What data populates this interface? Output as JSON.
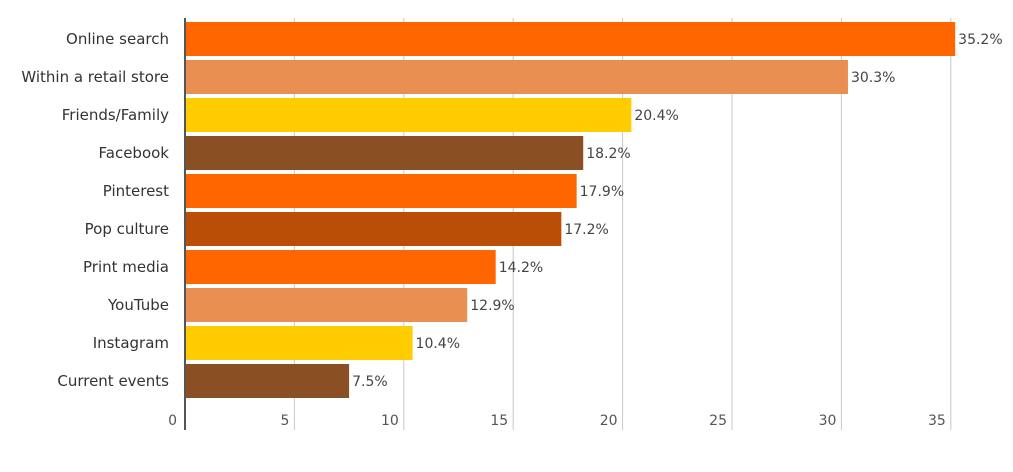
{
  "chart_data": {
    "type": "bar",
    "orientation": "horizontal",
    "categories": [
      "Online search",
      "Within a retail store",
      "Friends/Family",
      "Facebook",
      "Pinterest",
      "Pop culture",
      "Print media",
      "YouTube",
      "Instagram",
      "Current events"
    ],
    "values": [
      35.2,
      30.3,
      20.4,
      18.2,
      17.9,
      17.2,
      14.2,
      12.9,
      10.4,
      7.5
    ],
    "value_labels": [
      "35.2%",
      "30.3%",
      "20.4%",
      "18.2%",
      "17.9%",
      "17.2%",
      "14.2%",
      "12.9%",
      "10.4%",
      "7.5%"
    ],
    "colors": [
      "#ff6600",
      "#ea8f52",
      "#ffcc00",
      "#8b4f24",
      "#ff6600",
      "#bb4e06",
      "#ff6600",
      "#ea8f52",
      "#ffcc00",
      "#8b4f24"
    ],
    "xticks": [
      0,
      5,
      10,
      15,
      20,
      25,
      30,
      35
    ],
    "xtick_labels": [
      "0",
      "5",
      "10",
      "15",
      "20",
      "25",
      "30",
      "35"
    ],
    "xlim": [
      0,
      35.5
    ],
    "grid": true,
    "title": "",
    "xlabel": "",
    "ylabel": ""
  }
}
